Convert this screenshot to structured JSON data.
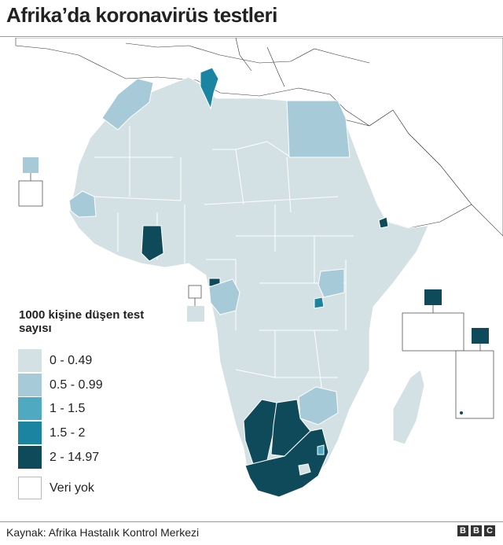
{
  "title": "Afrika’da koronavirüs testleri",
  "legend": {
    "title": "1000 kişine düşen test sayısı",
    "items": [
      {
        "label": "0 - 0.49",
        "color": "#d3e1e4"
      },
      {
        "label": "0.5 - 0.99",
        "color": "#a7cad8"
      },
      {
        "label": "1 - 1.5",
        "color": "#4fa9c0"
      },
      {
        "label": "1.5 - 2",
        "color": "#1b85a1"
      },
      {
        "label": "2 - 14.97",
        "color": "#0f4a5b"
      }
    ],
    "no_data_label": "Veri yok"
  },
  "source": "Kaynak: Afrika Hastalık Kontrol Merkezi",
  "logo": "BBC",
  "colors": {
    "border": "#555555",
    "country_border": "#ffffff",
    "non_africa": "#ffffff"
  },
  "countries": {
    "morocco": "0.5 - 0.99",
    "tunisia": "1.5 - 2",
    "egypt": "0.5 - 0.99",
    "senegal": "0.5 - 0.99",
    "ghana": "2 - 14.97",
    "djibouti": "2 - 14.97",
    "gabon": "0.5 - 0.99",
    "equatorial_guinea": "2 - 14.97",
    "uganda": "0.5 - 0.99",
    "rwanda": "1.5 - 2",
    "zimbabwe": "0.5 - 0.99",
    "south_africa": "2 - 14.97",
    "namibia": "2 - 14.97",
    "botswana": "2 - 14.97",
    "mauritius": "2 - 14.97",
    "seychelles": "2 - 14.97",
    "cape_verde": "0.5 - 0.99",
    "sao_tome": "0 - 0.49"
  }
}
